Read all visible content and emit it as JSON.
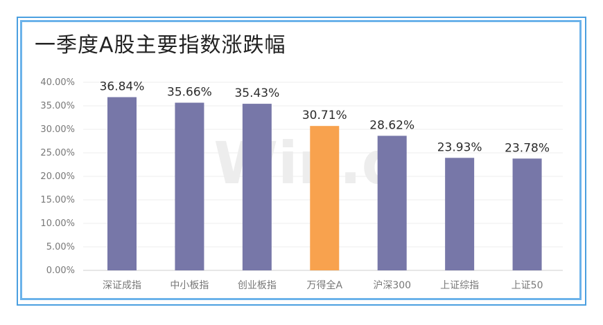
{
  "chart_data": {
    "type": "bar",
    "title": "一季度A股主要指数涨跌幅",
    "xlabel": "",
    "ylabel": "",
    "ylim": [
      0,
      40
    ],
    "yticks": [
      "0.00%",
      "5.00%",
      "10.00%",
      "15.00%",
      "20.00%",
      "25.00%",
      "30.00%",
      "35.00%",
      "40.00%"
    ],
    "categories": [
      "深证成指",
      "中小板指",
      "创业板指",
      "万得全A",
      "沪深300",
      "上证综指",
      "上证50"
    ],
    "values": [
      36.84,
      35.66,
      35.43,
      30.71,
      28.62,
      23.93,
      23.78
    ],
    "data_labels": [
      "36.84%",
      "35.66%",
      "35.43%",
      "30.71%",
      "28.62%",
      "23.93%",
      "23.78%"
    ],
    "colors": [
      "#7777a8",
      "#7777a8",
      "#7777a8",
      "#f8a24e",
      "#7777a8",
      "#7777a8",
      "#7777a8"
    ],
    "grid": true,
    "legend": "none",
    "watermark": "Win.d"
  }
}
